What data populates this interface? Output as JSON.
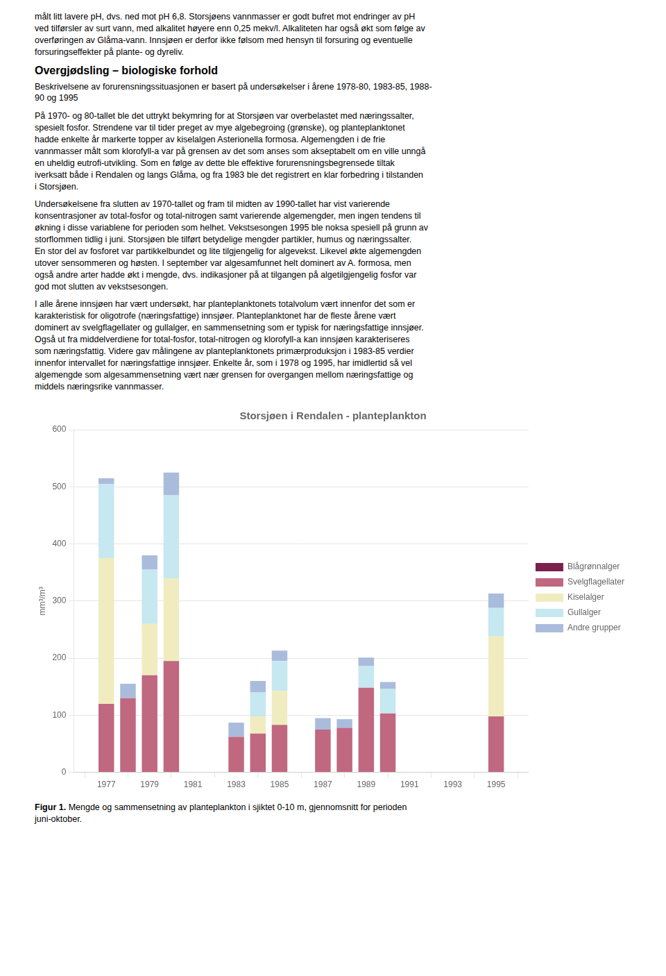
{
  "paragraphs": [
    "målt litt lavere pH, dvs. ned mot pH 6,8. Storsjøens vannmasser er godt bufret mot endringer av pH\nved tilførsler av surt vann, med alkalitet høyere enn 0,25 mekv/l. Alkaliteten har også økt som følge av\noverføringen av Glåma-vann. Innsjøen er derfor ikke følsom med hensyn til forsuring og eventuelle\nforsuringseffekter på plante- og dyreliv."
  ],
  "heading": "Overgjødsling – biologiske forhold",
  "paragraphs_after_heading": [
    "Beskrivelsene av forurensningssituasjonen er basert på undersøkelser i årene 1978-80, 1983-85, 1988-\n90 og 1995",
    "På 1970- og 80-tallet ble det uttrykt bekymring for at Storsjøen var overbelastet med næringssalter,\nspesielt fosfor. Strendene var til tider preget av mye algebegroing (grønske), og planteplanktonet\nhadde enkelte år markerte topper av kiselalgen Asterionella formosa. Algemengden i de frie\nvannmasser målt som klorofyll-a var på grensen av det som anses som akseptabelt om en ville unngå\nen uheldig eutrofi-utvikling. Som en følge av dette ble effektive forurensningsbegrensede tiltak\niverksatt både i Rendalen og langs Glåma, og fra 1983 ble det registrert en klar forbedring i tilstanden\ni Storsjøen.",
    "Undersøkelsene fra slutten av 1970-tallet og fram til midten av 1990-tallet har vist varierende\nkonsentrasjoner av total-fosfor og total-nitrogen samt varierende algemengder, men ingen tendens til\nøkning i disse variablene for perioden som helhet. Vekstsesongen 1995 ble noksa spesiell på grunn av\nstorflommen tidlig i juni. Storsjøen ble tilført betydelige mengder partikler, humus og næringssalter.\nEn stor del av fosforet var partikkelbundet og lite tilgjengelig for algevekst. Likevel økte algemengden\nutover sensommeren og høsten. I september var algesamfunnet helt dominert av A. formosa, men\nogså andre arter hadde økt i mengde, dvs. indikasjoner på at tilgangen på algetilgjengelig fosfor var\ngod mot slutten av vekstsesongen.",
    "I alle årene innsjøen har vært undersøkt, har planteplanktonets totalvolum vært innenfor det som er\nkarakteristisk for oligotrofe (næringsfattige) innsjøer. Planteplanktonet har de fleste årene vært\ndominert av svelgflagellater og gullalger, en sammensetning som er typisk for næringsfattige innsjøer.\nOgså ut fra middelverdiene for total-fosfor, total-nitrogen og klorofyll-a kan innsjøen karakteriseres\nsom næringsfattig. Videre gav målingene av planteplanktonets primærproduksjon i 1983-85 verdier\ninnenfor intervallet for næringsfattige innsjøer. Enkelte år, som i 1978 og 1995, har imidlertid så vel\nalgemengde som algesammensetning vært nær grensen for overgangen mellom næringsfattige og\nmiddels næringsrike vannmasser."
  ],
  "caption_label": "Figur 1.",
  "caption": "Mengde og sammensetning av planteplankton i sjiktet 0-10 m, gjennomsnitt for perioden\njuni-oktober.",
  "chart_data": {
    "type": "bar",
    "title": "Storsjøen i Rendalen - planteplankton",
    "ylabel": "mm³/m³",
    "stacked": true,
    "x": [
      1977,
      1978,
      1979,
      1980,
      1983,
      1984,
      1985,
      1987,
      1988,
      1989,
      1990,
      1995
    ],
    "xlim": [
      1975.5,
      1996.5
    ],
    "xticks": [
      1977,
      1979,
      1981,
      1983,
      1985,
      1987,
      1989,
      1991,
      1993,
      1995
    ],
    "ylim": [
      0,
      600
    ],
    "yticks": [
      0,
      100,
      200,
      300,
      400,
      500,
      600
    ],
    "grid": "y",
    "legend": "right",
    "series": [
      {
        "name": "Blågrønnalger",
        "color": "#7b1f4e",
        "values": [
          0,
          0,
          0,
          0,
          0,
          0,
          0,
          0,
          0,
          0,
          0,
          0
        ]
      },
      {
        "name": "Svelgflagellater",
        "color": "#c06880",
        "values": [
          120,
          130,
          170,
          195,
          62,
          68,
          83,
          75,
          78,
          148,
          103,
          98
        ]
      },
      {
        "name": "Kiselalger",
        "color": "#f0ecc0",
        "values": [
          255,
          0,
          90,
          145,
          0,
          30,
          60,
          0,
          0,
          0,
          0,
          140
        ]
      },
      {
        "name": "Gullalger",
        "color": "#c6e8f0",
        "values": [
          130,
          0,
          95,
          145,
          0,
          42,
          52,
          0,
          0,
          38,
          43,
          50
        ]
      },
      {
        "name": "Andre grupper",
        "color": "#aabcdc",
        "values": [
          10,
          25,
          25,
          40,
          25,
          20,
          18,
          20,
          15,
          15,
          12,
          25
        ]
      }
    ]
  }
}
